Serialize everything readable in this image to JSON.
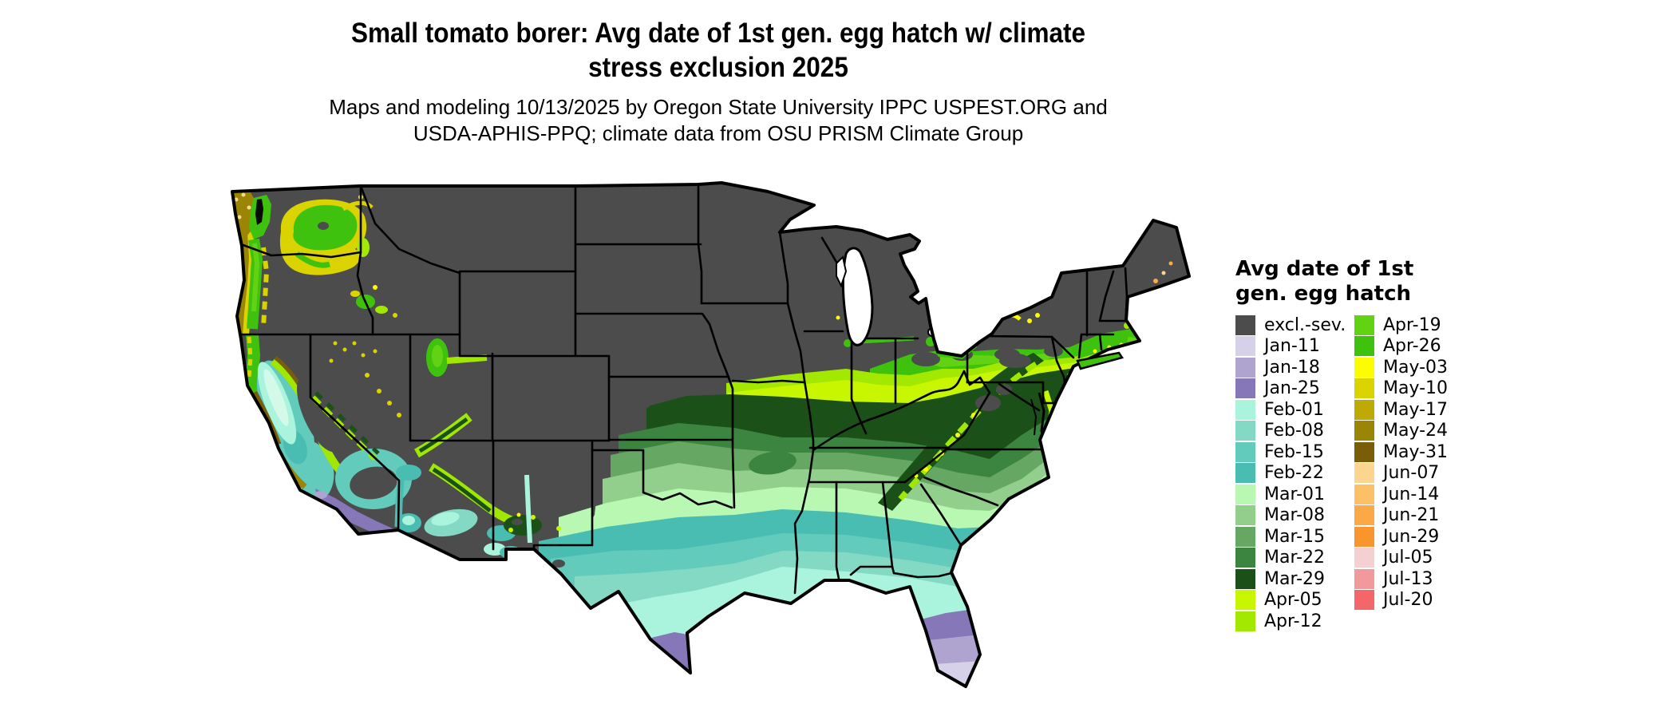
{
  "title": {
    "line1": "Small tomato borer: Avg date of 1st gen. egg hatch w/ climate",
    "line2": "stress exclusion 2025"
  },
  "subtitle": {
    "line1": "Maps and modeling 10/13/2025 by Oregon State University IPPC USPEST.ORG and",
    "line2": "USDA-APHIS-PPQ; climate data from OSU PRISM Climate Group"
  },
  "legend": {
    "title_line1": "Avg date of 1st",
    "title_line2": "gen. egg hatch",
    "columns": [
      {
        "items": [
          {
            "label": "excl.-sev.",
            "color": "#4c4c4c"
          },
          {
            "label": "Jan-11",
            "color": "#d6d0e8"
          },
          {
            "label": "Jan-18",
            "color": "#afa4cf"
          },
          {
            "label": "Jan-25",
            "color": "#8677b9"
          },
          {
            "label": "Feb-01",
            "color": "#aaf3dc"
          },
          {
            "label": "Feb-08",
            "color": "#84d9c4"
          },
          {
            "label": "Feb-15",
            "color": "#62cbbb"
          },
          {
            "label": "Feb-22",
            "color": "#49bdb2"
          },
          {
            "label": "Mar-01",
            "color": "#b8f8b3"
          },
          {
            "label": "Mar-08",
            "color": "#92cf8c"
          },
          {
            "label": "Mar-15",
            "color": "#66a764"
          },
          {
            "label": "Mar-22",
            "color": "#3c8540"
          },
          {
            "label": "Mar-29",
            "color": "#1b5119"
          },
          {
            "label": "Apr-05",
            "color": "#c8f500"
          },
          {
            "label": "Apr-12",
            "color": "#a2e800"
          }
        ]
      },
      {
        "items": [
          {
            "label": "Apr-19",
            "color": "#62d313"
          },
          {
            "label": "Apr-26",
            "color": "#3fc20e"
          },
          {
            "label": "May-03",
            "color": "#fdfd00"
          },
          {
            "label": "May-10",
            "color": "#dbd300"
          },
          {
            "label": "May-17",
            "color": "#bfa905"
          },
          {
            "label": "May-24",
            "color": "#9b8507"
          },
          {
            "label": "May-31",
            "color": "#7a5d08"
          },
          {
            "label": "Jun-07",
            "color": "#fcd68e"
          },
          {
            "label": "Jun-14",
            "color": "#fcc167"
          },
          {
            "label": "Jun-21",
            "color": "#fba947"
          },
          {
            "label": "Jun-29",
            "color": "#f8952c"
          },
          {
            "label": "Jul-05",
            "color": "#f4d0d2"
          },
          {
            "label": "Jul-13",
            "color": "#f2999c"
          },
          {
            "label": "Jul-20",
            "color": "#f5666b"
          }
        ]
      }
    ]
  },
  "map": {
    "region": "Contiguous United States",
    "excluded_color": "#4c4c4c",
    "background": "#ffffff"
  }
}
